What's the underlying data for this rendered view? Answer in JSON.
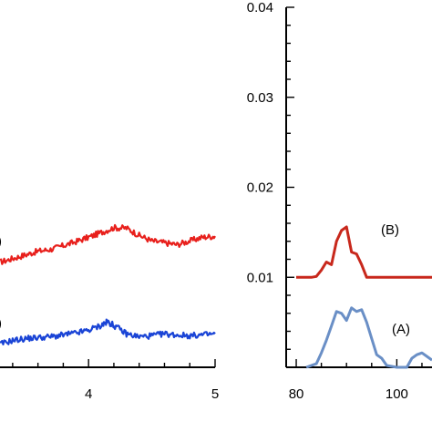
{
  "chart_data": [
    {
      "type": "line",
      "panel": "left",
      "xlabel": "",
      "ylabel": "",
      "xlim": [
        3.3,
        5.0
      ],
      "ylim": [
        0,
        1
      ],
      "x_ticks": [
        {
          "value": 4,
          "label": "4"
        },
        {
          "value": 5,
          "label": "5"
        }
      ],
      "grid": false,
      "series": [
        {
          "label": ")",
          "color": "#e8201c",
          "x": [
            3.3,
            3.4,
            3.5,
            3.6,
            3.7,
            3.8,
            3.9,
            4.0,
            4.1,
            4.2,
            4.3,
            4.4,
            4.5,
            4.6,
            4.7,
            4.8,
            4.9,
            5.0
          ],
          "y": [
            0.286,
            0.296,
            0.306,
            0.316,
            0.321,
            0.331,
            0.342,
            0.354,
            0.367,
            0.38,
            0.379,
            0.359,
            0.344,
            0.339,
            0.334,
            0.344,
            0.354,
            0.357
          ]
        },
        {
          "label": ")",
          "color": "#1a44d6",
          "x": [
            3.3,
            3.4,
            3.5,
            3.6,
            3.7,
            3.8,
            3.9,
            4.0,
            4.1,
            4.15,
            4.2,
            4.3,
            4.4,
            4.5,
            4.6,
            4.7,
            4.8,
            4.9,
            5.0
          ],
          "y": [
            0.063,
            0.073,
            0.078,
            0.081,
            0.083,
            0.088,
            0.093,
            0.101,
            0.114,
            0.124,
            0.114,
            0.091,
            0.083,
            0.086,
            0.091,
            0.088,
            0.086,
            0.088,
            0.091
          ]
        }
      ]
    },
    {
      "type": "line",
      "panel": "right",
      "xlabel": "",
      "ylabel": "",
      "xlim": [
        78,
        107
      ],
      "ylim": [
        0,
        0.04
      ],
      "x_ticks": [
        {
          "value": 80,
          "label": "80"
        },
        {
          "value": 100,
          "label": "100"
        }
      ],
      "y_ticks": [
        {
          "value": 0.01,
          "label": "0.01"
        },
        {
          "value": 0.02,
          "label": "0.02"
        },
        {
          "value": 0.03,
          "label": "0.03"
        },
        {
          "value": 0.04,
          "label": "0.04"
        }
      ],
      "grid": false,
      "series": [
        {
          "label": "(B)",
          "color": "#c8281c",
          "x": [
            80,
            82,
            83,
            84,
            85,
            86,
            87,
            88,
            89,
            90,
            91,
            92,
            93,
            94,
            96,
            100,
            107
          ],
          "y": [
            0.01,
            0.01,
            0.01,
            0.0101,
            0.0108,
            0.0117,
            0.0114,
            0.014,
            0.0152,
            0.0156,
            0.0128,
            0.0126,
            0.0114,
            0.01,
            0.01,
            0.01,
            0.01
          ]
        },
        {
          "label": "(A)",
          "color": "#6a8fc6",
          "x": [
            82,
            83,
            84,
            85,
            86,
            87,
            88,
            89,
            90,
            91,
            92,
            93,
            94,
            95,
            96,
            97,
            98,
            100,
            102,
            103,
            104,
            105,
            106,
            107
          ],
          "y": [
            0.0,
            0.0002,
            0.0004,
            0.0016,
            0.003,
            0.0046,
            0.0062,
            0.006,
            0.0052,
            0.0066,
            0.0062,
            0.0064,
            0.005,
            0.0032,
            0.0014,
            0.001,
            0.0002,
            0.0,
            0.0,
            0.001,
            0.0014,
            0.0016,
            0.0012,
            0.0008
          ]
        }
      ]
    }
  ]
}
